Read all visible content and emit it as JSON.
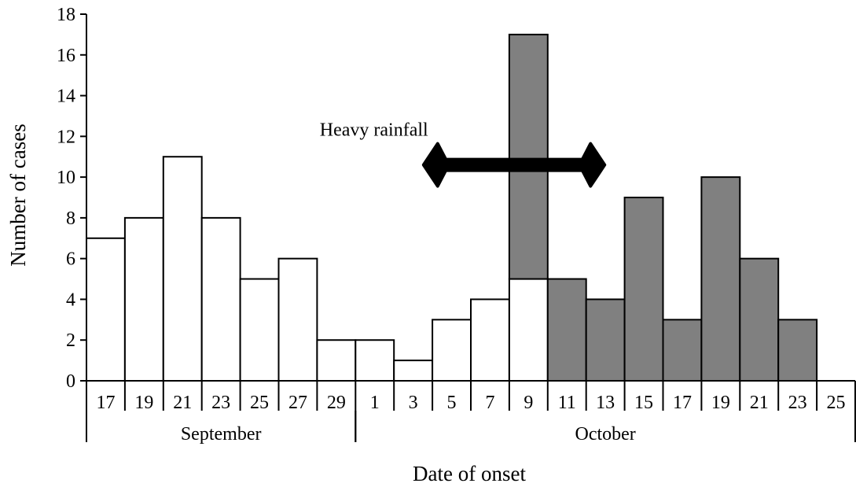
{
  "chart_data": {
    "type": "bar",
    "stacked": true,
    "xlabel": "Date of onset",
    "ylabel": "Number of cases",
    "ylim": [
      0,
      18
    ],
    "yticks": [
      0,
      2,
      4,
      6,
      8,
      10,
      12,
      14,
      16,
      18
    ],
    "categories": [
      "17",
      "19",
      "21",
      "23",
      "25",
      "27",
      "29",
      "1",
      "3",
      "5",
      "7",
      "9",
      "11",
      "13",
      "15",
      "17",
      "19",
      "21",
      "23",
      "25"
    ],
    "months": [
      {
        "label": "September",
        "start": 0,
        "end": 7
      },
      {
        "label": "October",
        "start": 7,
        "end": 20
      }
    ],
    "series": [
      {
        "color": "#ffffff",
        "values": [
          7,
          8,
          11,
          8,
          5,
          6,
          2,
          2,
          1,
          3,
          4,
          5,
          0,
          0,
          0,
          0,
          0,
          0,
          0,
          0
        ]
      },
      {
        "color": "#808080",
        "values": [
          0,
          0,
          0,
          0,
          0,
          0,
          0,
          0,
          0,
          0,
          0,
          12,
          5,
          4,
          9,
          3,
          10,
          6,
          3,
          0
        ]
      }
    ],
    "annotation": {
      "text": "Heavy rainfall",
      "y": 10.6,
      "x_start_category": 8.85,
      "x_end_category": 13.4
    },
    "grid": false,
    "legend": "none"
  }
}
